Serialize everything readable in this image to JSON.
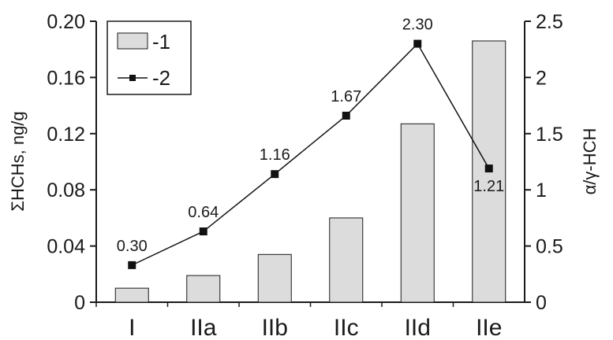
{
  "chart_data": {
    "type": "bar",
    "categories": [
      "I",
      "IIa",
      "IIb",
      "IIc",
      "IId",
      "IIe"
    ],
    "series": [
      {
        "name": "-1",
        "type": "bar",
        "axis": "left",
        "values": [
          0.01,
          0.019,
          0.034,
          0.06,
          0.127,
          0.186
        ],
        "color": "#dcdcdc"
      },
      {
        "name": "-2",
        "type": "line",
        "axis": "right",
        "values": [
          0.3,
          0.64,
          1.16,
          1.67,
          2.3,
          1.21
        ],
        "data_labels": [
          "0.30",
          "0.64",
          "1.16",
          "1.67",
          "2.30",
          "1.21"
        ],
        "plotted_values": [
          0.33,
          0.63,
          1.14,
          1.66,
          2.3,
          1.19
        ],
        "color": "#111111",
        "marker": "square"
      }
    ],
    "ylabel": "ΣHCHs, ng/g",
    "y2label": "α/γ-HCH",
    "ylim": [
      0,
      0.2
    ],
    "y2lim": [
      0,
      2.5
    ],
    "yticks": [
      "0",
      "0.04",
      "0.08",
      "0.12",
      "0.16",
      "0.20"
    ],
    "y2ticks": [
      "0",
      "0.5",
      "1",
      "1.5",
      "2",
      "2.5"
    ],
    "legend": {
      "position": "top-left",
      "entries": [
        "-1",
        "-2"
      ]
    },
    "grid": false
  }
}
